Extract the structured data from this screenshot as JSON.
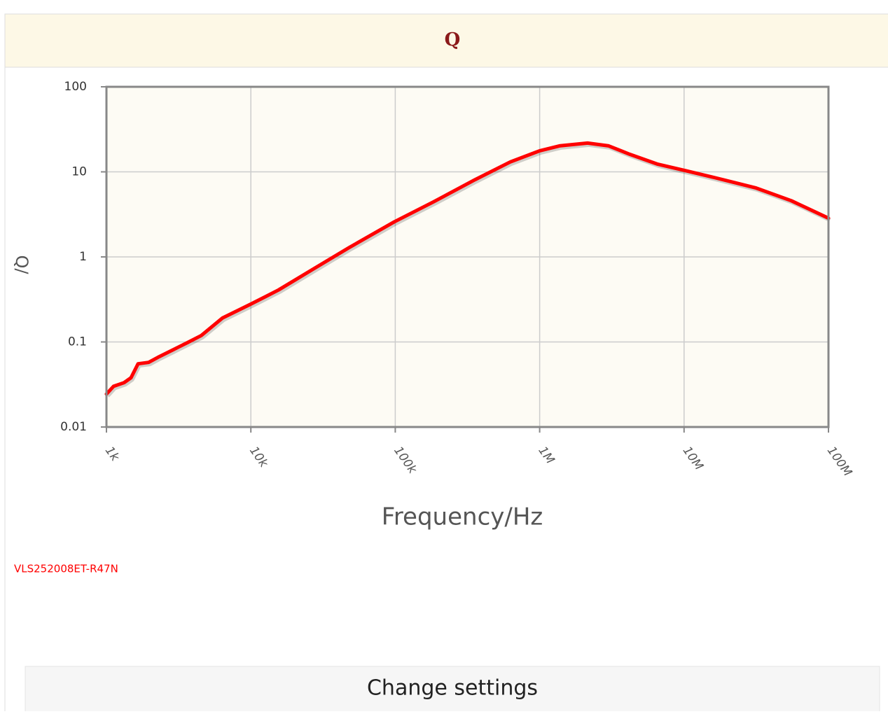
{
  "chart_data": {
    "type": "line",
    "title": "Q",
    "ylabel": "Q/",
    "xlabel": "Frequency/Hz",
    "xscale": "log",
    "yscale": "log",
    "grid": true,
    "xlim": [
      1000,
      100000000
    ],
    "ylim": [
      0.01,
      100
    ],
    "xticks": [
      {
        "value": 1000,
        "label": "1k"
      },
      {
        "value": 10000,
        "label": "10k"
      },
      {
        "value": 100000,
        "label": "100k"
      },
      {
        "value": 1000000,
        "label": "1M"
      },
      {
        "value": 10000000,
        "label": "10M"
      },
      {
        "value": 100000000,
        "label": "100M"
      }
    ],
    "yticks": [
      100,
      10,
      1,
      0.1,
      0.01
    ],
    "x": [
      1000,
      1119,
      1324,
      1479,
      1655,
      1958,
      2317,
      2899,
      3624,
      4536,
      6350,
      10000,
      15560,
      27230,
      47650,
      98640,
      182700,
      357500,
      626200,
      1000000,
      1371000,
      2146000,
      3004000,
      4204000,
      6577000,
      10070000,
      16110000,
      31550000,
      55230000,
      100000000
    ],
    "series": [
      {
        "name": "VLS252008ET-R47N",
        "color": "#ff0000",
        "values": [
          0.0244,
          0.0301,
          0.0332,
          0.0379,
          0.0554,
          0.0575,
          0.067,
          0.081,
          0.098,
          0.119,
          0.191,
          0.279,
          0.409,
          0.724,
          1.28,
          2.59,
          4.41,
          8.11,
          13.1,
          17.7,
          20.2,
          21.8,
          20.2,
          16.1,
          12.3,
          10.4,
          8.59,
          6.46,
          4.58,
          2.85
        ]
      }
    ]
  },
  "button": {
    "label": "Change settings"
  }
}
